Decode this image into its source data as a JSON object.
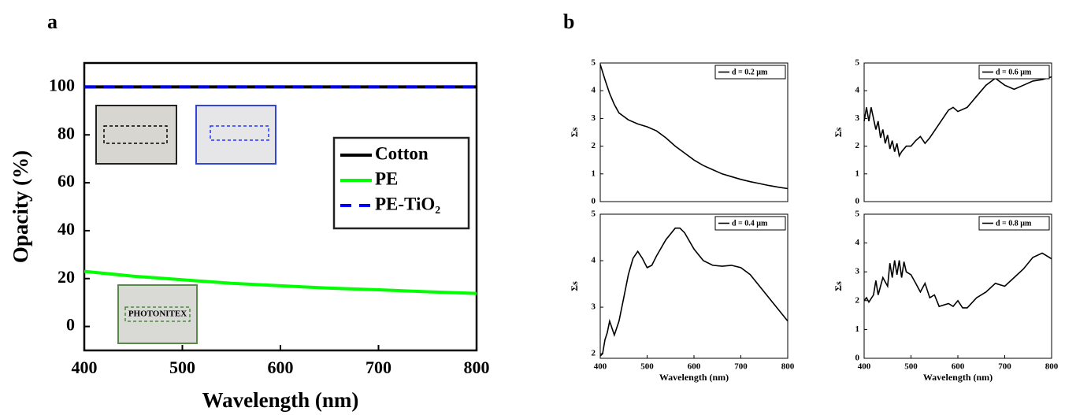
{
  "chart_data": [
    {
      "type": "line",
      "panel": "a",
      "xlabel": "Wavelength (nm)",
      "ylabel": "Opacity (%)",
      "x": [
        400,
        450,
        500,
        550,
        600,
        650,
        700,
        750,
        800
      ],
      "series": [
        {
          "name": "Cotton",
          "color": "#000000",
          "values": [
            100,
            100,
            100,
            100,
            100,
            100,
            100,
            100,
            100
          ]
        },
        {
          "name": "PE",
          "color": "#00ff00",
          "values": [
            23,
            21,
            19.5,
            18,
            17,
            16,
            15.3,
            14.5,
            13.8
          ]
        },
        {
          "name": "PE-TiO₂",
          "color": "#0000ff",
          "dashed": true,
          "values": [
            100,
            100,
            100,
            100,
            100,
            100,
            100,
            100,
            100
          ]
        }
      ],
      "xlim": [
        400,
        800
      ],
      "ylim": [
        -10,
        110
      ],
      "xticks": [
        400,
        500,
        600,
        700,
        800
      ],
      "yticks": [
        0,
        20,
        40,
        60,
        80,
        100
      ],
      "legend": "right",
      "annotations": [
        "PHOTONITEX"
      ]
    },
    {
      "type": "line",
      "panel": "b",
      "ylabel": "Σs",
      "x": [
        400,
        410,
        420,
        430,
        440,
        460,
        480,
        500,
        520,
        540,
        560,
        580,
        600,
        620,
        640,
        660,
        680,
        700,
        720,
        740,
        760,
        780,
        800
      ],
      "series": [
        {
          "name": "d = 0.2 µm",
          "color": "#000000",
          "values": [
            4.95,
            4.4,
            3.9,
            3.5,
            3.2,
            2.95,
            2.8,
            2.7,
            2.55,
            2.3,
            2.0,
            1.75,
            1.5,
            1.3,
            1.15,
            1.0,
            0.9,
            0.8,
            0.72,
            0.65,
            0.58,
            0.52,
            0.47
          ]
        }
      ],
      "xlim": [
        400,
        800
      ],
      "ylim": [
        0,
        5
      ],
      "yticks": [
        0,
        1,
        2,
        3,
        4,
        5
      ],
      "legend": "upper right"
    },
    {
      "type": "line",
      "ylabel": "Σs",
      "x": [
        400,
        405,
        410,
        415,
        420,
        425,
        430,
        435,
        440,
        445,
        450,
        455,
        460,
        465,
        470,
        475,
        480,
        490,
        500,
        510,
        520,
        530,
        540,
        560,
        580,
        590,
        600,
        620,
        640,
        660,
        680,
        700,
        720,
        740,
        760,
        780,
        800
      ],
      "series": [
        {
          "name": "d = 0.6 µm",
          "color": "#000000",
          "values": [
            2.9,
            3.4,
            2.9,
            3.4,
            3.0,
            2.6,
            2.9,
            2.3,
            2.6,
            2.1,
            2.4,
            1.9,
            2.2,
            1.8,
            2.1,
            1.65,
            1.8,
            2.0,
            2.0,
            2.2,
            2.35,
            2.1,
            2.3,
            2.8,
            3.3,
            3.4,
            3.25,
            3.4,
            3.8,
            4.2,
            4.45,
            4.2,
            4.05,
            4.2,
            4.35,
            4.4,
            4.5
          ]
        }
      ],
      "xlim": [
        400,
        800
      ],
      "ylim": [
        0,
        5
      ],
      "yticks": [
        0,
        1,
        2,
        3,
        4,
        5
      ],
      "legend": "upper right"
    },
    {
      "type": "line",
      "ylabel": "Σs",
      "xlabel": "Wavelength (nm)",
      "x": [
        400,
        405,
        410,
        415,
        420,
        425,
        430,
        440,
        450,
        460,
        470,
        480,
        490,
        500,
        510,
        520,
        540,
        560,
        570,
        580,
        600,
        620,
        640,
        660,
        680,
        700,
        720,
        740,
        760,
        780,
        800
      ],
      "series": [
        {
          "name": "d = 0.4 µm",
          "color": "#000000",
          "values": [
            1.95,
            2.0,
            2.3,
            2.45,
            2.7,
            2.55,
            2.4,
            2.7,
            3.2,
            3.7,
            4.05,
            4.2,
            4.05,
            3.85,
            3.9,
            4.1,
            4.45,
            4.7,
            4.7,
            4.6,
            4.25,
            4.0,
            3.9,
            3.88,
            3.9,
            3.85,
            3.7,
            3.45,
            3.2,
            2.95,
            2.7
          ]
        }
      ],
      "xlim": [
        400,
        800
      ],
      "ylim": [
        1.9,
        5
      ],
      "xticks": [
        400,
        500,
        600,
        700,
        800
      ],
      "yticks": [
        2,
        3,
        4,
        5
      ],
      "legend": "upper right"
    },
    {
      "type": "line",
      "ylabel": "Σs",
      "xlabel": "Wavelength (nm)",
      "x": [
        400,
        405,
        410,
        420,
        425,
        430,
        440,
        450,
        455,
        460,
        465,
        470,
        475,
        480,
        485,
        490,
        500,
        510,
        520,
        530,
        540,
        550,
        560,
        580,
        590,
        600,
        610,
        620,
        640,
        660,
        680,
        700,
        720,
        740,
        760,
        780,
        800
      ],
      "series": [
        {
          "name": "d = 0.8 µm",
          "color": "#000000",
          "values": [
            2.0,
            2.1,
            1.95,
            2.2,
            2.7,
            2.2,
            2.8,
            2.5,
            3.3,
            2.8,
            3.4,
            2.9,
            3.4,
            2.8,
            3.35,
            3.0,
            2.9,
            2.6,
            2.3,
            2.6,
            2.1,
            2.2,
            1.8,
            1.9,
            1.8,
            2.0,
            1.75,
            1.75,
            2.1,
            2.3,
            2.6,
            2.5,
            2.8,
            3.1,
            3.5,
            3.65,
            3.45
          ]
        }
      ],
      "xlim": [
        400,
        800
      ],
      "ylim": [
        0,
        5
      ],
      "xticks": [
        400,
        500,
        600,
        700,
        800
      ],
      "yticks": [
        0,
        1,
        2,
        3,
        4,
        5
      ],
      "legend": "upper right"
    }
  ]
}
